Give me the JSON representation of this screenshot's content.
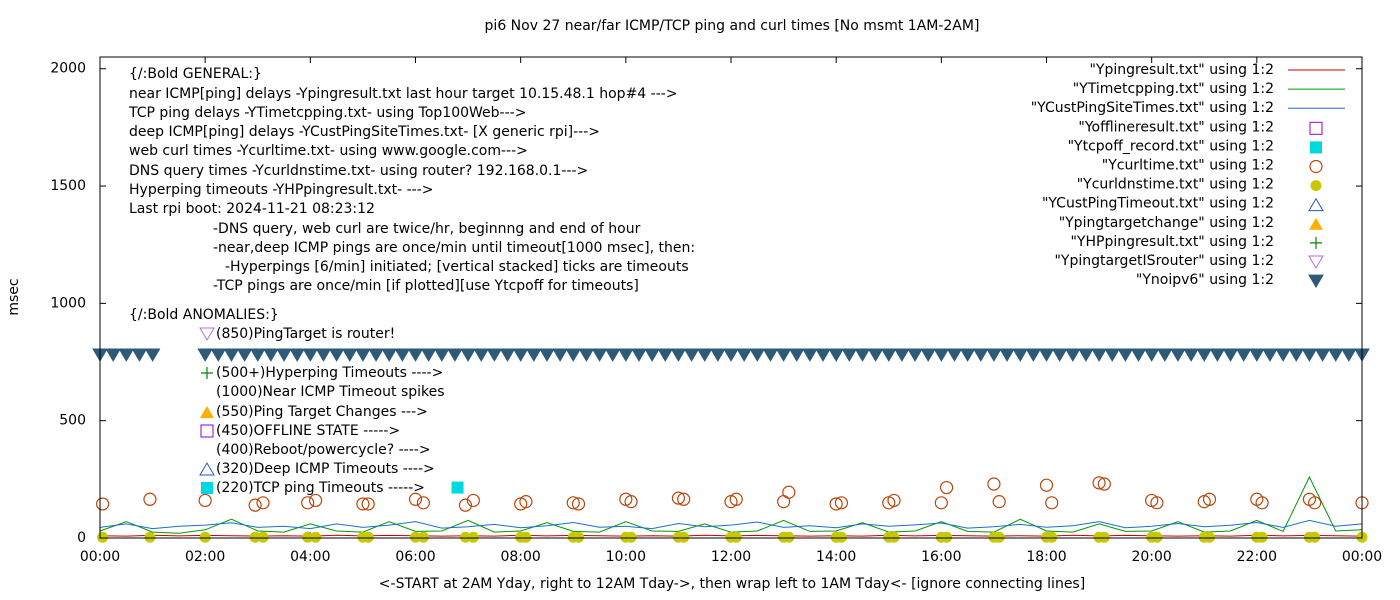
{
  "chart_data": {
    "type": "line",
    "title": "pi6 Nov 27  near/far ICMP/TCP ping and curl times [No msmt 1AM-2AM]",
    "x_label": "<-START at 2AM Yday, right to 12AM Tday->, then wrap left to 1AM Tday<- [ignore connecting lines]",
    "y_label": "msec",
    "xlim": [
      0,
      24
    ],
    "xticks": [
      {
        "value": 0,
        "label": "00:00"
      },
      {
        "value": 2,
        "label": "02:00"
      },
      {
        "value": 4,
        "label": "04:00"
      },
      {
        "value": 6,
        "label": "06:00"
      },
      {
        "value": 8,
        "label": "08:00"
      },
      {
        "value": 10,
        "label": "10:00"
      },
      {
        "value": 12,
        "label": "12:00"
      },
      {
        "value": 14,
        "label": "14:00"
      },
      {
        "value": 16,
        "label": "16:00"
      },
      {
        "value": 18,
        "label": "18:00"
      },
      {
        "value": 20,
        "label": "20:00"
      },
      {
        "value": 22,
        "label": "22:00"
      },
      {
        "value": 24,
        "label": "00:00"
      }
    ],
    "ylim": [
      0,
      2050
    ],
    "yticks": [
      0,
      500,
      1000,
      1500,
      2000
    ],
    "grid": false,
    "legend": "top-right",
    "annotations": [
      "{/:Bold GENERAL:}",
      "near ICMP[ping] delays -Ypingresult.txt last hour target 10.15.48.1 hop#4 --->",
      "TCP ping delays -YTimetcpping.txt- using Top100Web--->",
      "deep ICMP[ping] delays -YCustPingSiteTimes.txt- [X generic rpi]--->",
      "web curl times -Ycurltime.txt- using www.google.com--->",
      "DNS query times -Ycurldnstime.txt- using router? 192.168.0.1--->",
      "Hyperping timeouts -YHPpingresult.txt- --->",
      "Last rpi boot: 2024-11-21 08:23:12",
      "-DNS query, web curl are twice/hr, beginnng and end of hour",
      "-near,deep ICMP pings are once/min until timeout[1000 msec], then:",
      "-Hyperpings [6/min] initiated; [vertical stacked] ticks are timeouts",
      "-TCP pings are once/min [if plotted][use Ytcpoff for timeouts]",
      "{/:Bold ANOMALIES:}",
      "(850)PingTarget is router!",
      "(500+)Hyperping Timeouts ---->",
      "(1000)Near ICMP Timeout spikes",
      "(550)Ping Target Changes --->",
      "(450)OFFLINE STATE ----->",
      "(400)Reboot/powercycle? ---->",
      "(320)Deep ICMP Timeouts ---->",
      "(220)TCP ping Timeouts ----->"
    ],
    "series": [
      {
        "name": "\"Ypingresult.txt\" using 1:2",
        "color": "#cc0000",
        "style": "line",
        "x": [
          0,
          0.5,
          1,
          1.5,
          2,
          2.5,
          3,
          3.5,
          4,
          4.5,
          5,
          5.5,
          6,
          6.5,
          7,
          7.5,
          8,
          8.5,
          9,
          9.5,
          10,
          10.5,
          11,
          11.5,
          12,
          12.5,
          13,
          13.5,
          14,
          14.5,
          15,
          15.5,
          16,
          16.5,
          17,
          17.5,
          18,
          18.5,
          19,
          19.5,
          20,
          20.5,
          21,
          21.5,
          22,
          22.5,
          23,
          23.5,
          24
        ],
        "values": [
          10,
          8,
          12,
          9,
          11,
          10,
          8,
          10,
          8,
          12,
          9,
          11,
          10,
          8,
          10,
          8,
          12,
          9,
          11,
          10,
          8,
          10,
          8,
          12,
          9,
          11,
          10,
          8,
          10,
          8,
          12,
          9,
          11,
          10,
          8,
          10,
          8,
          12,
          9,
          11,
          10,
          8,
          10,
          8,
          12,
          9,
          11,
          10,
          8
        ]
      },
      {
        "name": "\"YTimetcpping.txt\" using 1:2",
        "color": "#009900",
        "style": "line",
        "x": [
          0,
          0.5,
          1,
          1.5,
          2,
          2.5,
          3,
          3.5,
          4,
          4.5,
          5,
          5.5,
          6,
          6.5,
          7,
          7.5,
          8,
          8.5,
          9,
          9.5,
          10,
          10.5,
          11,
          11.5,
          12,
          12.5,
          13,
          13.5,
          14,
          14.5,
          15,
          15.5,
          16,
          16.5,
          17,
          17.5,
          18,
          18.5,
          19,
          19.5,
          20,
          20.5,
          21,
          21.5,
          22,
          22.5,
          23,
          23.5,
          24
        ],
        "values": [
          30,
          70,
          25,
          20,
          35,
          80,
          30,
          25,
          60,
          30,
          25,
          70,
          28,
          30,
          75,
          25,
          30,
          65,
          28,
          25,
          70,
          30,
          28,
          60,
          25,
          30,
          75,
          28,
          30,
          65,
          25,
          30,
          70,
          28,
          25,
          80,
          30,
          25,
          60,
          28,
          30,
          70,
          25,
          30,
          75,
          28,
          260,
          30,
          35
        ]
      },
      {
        "name": "\"YCustPingSiteTimes.txt\" using 1:2",
        "color": "#1a6fd0",
        "style": "line",
        "x": [
          0,
          0.5,
          1,
          1.5,
          2,
          2.5,
          3,
          3.5,
          4,
          4.5,
          5,
          5.5,
          6,
          6.5,
          7,
          7.5,
          8,
          8.5,
          9,
          9.5,
          10,
          10.5,
          11,
          11.5,
          12,
          12.5,
          13,
          13.5,
          14,
          14.5,
          15,
          15.5,
          16,
          16.5,
          17,
          17.5,
          18,
          18.5,
          19,
          19.5,
          20,
          20.5,
          21,
          21.5,
          22,
          22.5,
          23,
          23.5,
          24
        ],
        "values": [
          45,
          60,
          40,
          50,
          55,
          65,
          45,
          50,
          40,
          60,
          45,
          55,
          70,
          42,
          48,
          58,
          44,
          52,
          66,
          46,
          50,
          40,
          62,
          48,
          55,
          68,
          45,
          52,
          44,
          60,
          50,
          56,
          64,
          42,
          48,
          58,
          46,
          52,
          70,
          44,
          50,
          62,
          48,
          54,
          66,
          45,
          75,
          50,
          60
        ]
      },
      {
        "name": "\"Yofflineresult.txt\" using 1:2",
        "color": "#9400d3",
        "style": "square-open",
        "x": [],
        "values": []
      },
      {
        "name": "\"Ytcpoff_record.txt\" using 1:2",
        "color": "#00d8e0",
        "style": "square",
        "x": [
          6.8
        ],
        "values": [
          215
        ]
      },
      {
        "name": "\"Ycurltime.txt\" using 1:2",
        "color": "#b8460b",
        "style": "circle-open",
        "x": [
          0.05,
          0.95,
          2,
          2.95,
          3.1,
          3.95,
          4.1,
          5,
          5.1,
          6,
          6.15,
          6.95,
          7.1,
          8,
          8.1,
          9,
          9.1,
          10,
          10.1,
          11,
          11.1,
          12,
          12.1,
          13,
          13.1,
          14,
          14.1,
          15,
          15.1,
          16,
          16.1,
          17,
          17.1,
          18,
          18.1,
          19,
          19.1,
          20,
          20.1,
          21,
          21.1,
          22,
          22.1,
          23,
          23.1,
          24
        ],
        "values": [
          145,
          165,
          160,
          140,
          150,
          150,
          160,
          145,
          145,
          165,
          150,
          140,
          160,
          145,
          155,
          150,
          145,
          165,
          155,
          170,
          165,
          155,
          165,
          155,
          195,
          145,
          150,
          150,
          160,
          150,
          215,
          230,
          155,
          225,
          150,
          235,
          230,
          160,
          150,
          155,
          165,
          165,
          150,
          165,
          150,
          150
        ]
      },
      {
        "name": "\"Ycurldnstime.txt\" using 1:2",
        "color": "#c8c800",
        "style": "circle",
        "x": [
          0.05,
          0.95,
          2,
          2.95,
          3.1,
          3.95,
          4.1,
          5,
          5.1,
          6,
          6.15,
          6.95,
          7.1,
          8,
          8.1,
          9,
          9.1,
          10,
          10.1,
          11,
          11.1,
          12,
          12.1,
          13,
          13.1,
          14,
          14.1,
          15,
          15.1,
          16,
          16.1,
          17,
          17.1,
          18,
          18.1,
          19,
          19.1,
          20,
          20.1,
          21,
          21.1,
          22,
          22.1,
          23,
          23.1,
          24
        ],
        "values": [
          3,
          3,
          3,
          3,
          3,
          3,
          3,
          3,
          3,
          3,
          3,
          3,
          3,
          3,
          3,
          3,
          3,
          3,
          3,
          3,
          3,
          3,
          3,
          3,
          3,
          3,
          3,
          3,
          3,
          3,
          3,
          3,
          3,
          3,
          3,
          3,
          3,
          3,
          3,
          3,
          3,
          3,
          3,
          3,
          3,
          3
        ]
      },
      {
        "name": "\"YCustPingTimeout.txt\" using 1:2",
        "color": "#2255cc",
        "style": "triangle-open",
        "x": [],
        "values": []
      },
      {
        "name": "\"Ypingtargetchange\" using 1:2",
        "color": "#ffb000",
        "style": "triangle",
        "x": [],
        "values": []
      },
      {
        "name": "\"YHPpingresult.txt\" using 1:2",
        "color": "#008800",
        "style": "plus",
        "x": [],
        "values": []
      },
      {
        "name": "\"YpingtargetISrouter\" using 1:2",
        "color": "#b36bd6",
        "style": "triangle-down-open",
        "x": [],
        "values": []
      },
      {
        "name": "\"Ynoipv6\" using 1:2",
        "color": "#2e5a78",
        "style": "triangle-down",
        "x": [
          0,
          0.25,
          0.5,
          0.75,
          1,
          2,
          2.25,
          2.5,
          2.75,
          3,
          3.25,
          3.5,
          3.75,
          4,
          4.25,
          4.5,
          4.75,
          5,
          5.25,
          5.5,
          5.75,
          6,
          6.25,
          6.5,
          6.75,
          7,
          7.25,
          7.5,
          7.75,
          8,
          8.25,
          8.5,
          8.75,
          9,
          9.25,
          9.5,
          9.75,
          10,
          10.25,
          10.5,
          10.75,
          11,
          11.25,
          11.5,
          11.75,
          12,
          12.25,
          12.5,
          12.75,
          13,
          13.25,
          13.5,
          13.75,
          14,
          14.25,
          14.5,
          14.75,
          15,
          15.25,
          15.5,
          15.75,
          16,
          16.25,
          16.5,
          16.75,
          17,
          17.25,
          17.5,
          17.75,
          18,
          18.25,
          18.5,
          18.75,
          19,
          19.25,
          19.5,
          19.75,
          20,
          20.25,
          20.5,
          20.75,
          21,
          21.25,
          21.5,
          21.75,
          22,
          22.25,
          22.5,
          22.75,
          23,
          23.25,
          23.5,
          23.75,
          24
        ],
        "values": [
          780,
          780,
          780,
          780,
          780,
          780,
          780,
          780,
          780,
          780,
          780,
          780,
          780,
          780,
          780,
          780,
          780,
          780,
          780,
          780,
          780,
          780,
          780,
          780,
          780,
          780,
          780,
          780,
          780,
          780,
          780,
          780,
          780,
          780,
          780,
          780,
          780,
          780,
          780,
          780,
          780,
          780,
          780,
          780,
          780,
          780,
          780,
          780,
          780,
          780,
          780,
          780,
          780,
          780,
          780,
          780,
          780,
          780,
          780,
          780,
          780,
          780,
          780,
          780,
          780,
          780,
          780,
          780,
          780,
          780,
          780,
          780,
          780,
          780,
          780,
          780,
          780,
          780,
          780,
          780,
          780,
          780,
          780,
          780,
          780,
          780,
          780,
          780,
          780,
          780,
          780,
          780,
          780,
          780
        ]
      }
    ]
  }
}
